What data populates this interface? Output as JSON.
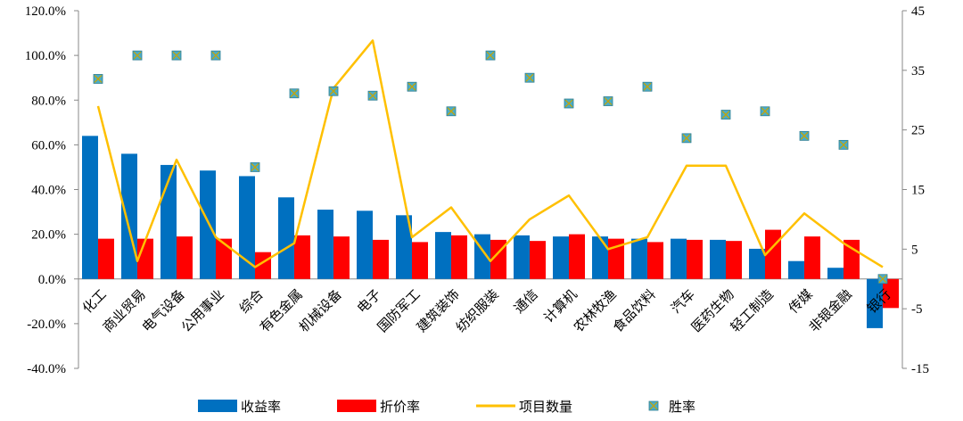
{
  "chart_data": {
    "type": "bar",
    "categories": [
      "化工",
      "商业贸易",
      "电气设备",
      "公用事业",
      "综合",
      "有色金属",
      "机械设备",
      "电子",
      "国防军工",
      "建筑装饰",
      "纺织服装",
      "通信",
      "计算机",
      "农林牧渔",
      "食品饮料",
      "汽车",
      "医药生物",
      "轻工制造",
      "传媒",
      "非银金融",
      "银行"
    ],
    "left_axis": {
      "min": -0.4,
      "max": 1.2,
      "step": 0.2,
      "ticks": [
        "-40.0%",
        "-20.0%",
        "0.0%",
        "20.0%",
        "40.0%",
        "60.0%",
        "80.0%",
        "100.0%",
        "120.0%"
      ]
    },
    "right_axis": {
      "min": -15,
      "max": 45,
      "step": 10,
      "ticks": [
        "-15",
        "-5",
        "5",
        "15",
        "25",
        "35",
        "45"
      ]
    },
    "series": [
      {
        "name": "收益率",
        "type": "bar",
        "axis": "left",
        "color": "#0070C0",
        "values": [
          0.64,
          0.56,
          0.51,
          0.485,
          0.46,
          0.365,
          0.31,
          0.305,
          0.285,
          0.21,
          0.2,
          0.195,
          0.19,
          0.19,
          0.18,
          0.18,
          0.175,
          0.135,
          0.08,
          0.05,
          -0.22
        ]
      },
      {
        "name": "折价率",
        "type": "bar",
        "axis": "left",
        "color": "#FF0000",
        "values": [
          0.18,
          0.18,
          0.19,
          0.18,
          0.12,
          0.195,
          0.19,
          0.175,
          0.165,
          0.195,
          0.175,
          0.17,
          0.2,
          0.18,
          0.165,
          0.175,
          0.17,
          0.22,
          0.19,
          0.175,
          -0.13
        ]
      },
      {
        "name": "项目数量",
        "type": "line",
        "axis": "right",
        "color": "#FFC000",
        "values": [
          29,
          3,
          20,
          7,
          2,
          6,
          32,
          40,
          7,
          12,
          3,
          10,
          14,
          5,
          7,
          19,
          19,
          4,
          11,
          6,
          2
        ]
      },
      {
        "name": "胜率",
        "type": "scatter",
        "axis": "left",
        "color": "#4BACC6",
        "values": [
          0.895,
          1.0,
          1.0,
          1.0,
          0.5,
          0.83,
          0.84,
          0.82,
          0.86,
          0.75,
          1.0,
          0.9,
          0.785,
          0.795,
          0.86,
          0.63,
          0.735,
          0.75,
          0.64,
          0.6,
          0.0
        ]
      }
    ],
    "legend_position": "bottom",
    "grid": false
  }
}
